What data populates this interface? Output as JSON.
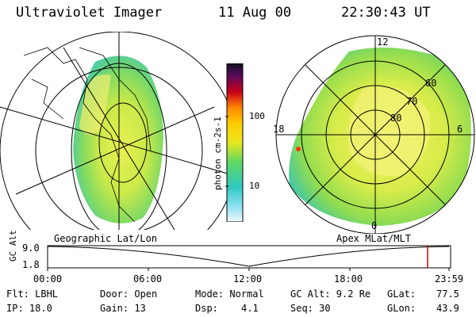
{
  "header": {
    "instrument": "Ultraviolet Imager",
    "date": "11 Aug 00",
    "time": "22:30:43 UT"
  },
  "colorbar": {
    "label": "photon cm-2s-1",
    "ticks": [
      "100",
      "10"
    ],
    "colors": [
      "#111122",
      "#2a0a3a",
      "#5a0a5a",
      "#8a0030",
      "#c8001a",
      "#ff3300",
      "#ff8800",
      "#ffcc00",
      "#e8e820",
      "#b0e830",
      "#60d860",
      "#30c8c0",
      "#8ae0f0",
      "#d8f0f8",
      "#f4f8fc"
    ]
  },
  "left_map": {
    "caption": "Geographic Lat/Lon"
  },
  "right_map": {
    "caption": "Apex MLat/MLT",
    "mlt_labels": [
      "12",
      "18",
      "6",
      "0"
    ],
    "lat_labels": [
      "60",
      "70",
      "80"
    ]
  },
  "timeline": {
    "axis_label": "GC Alt",
    "y_ticks": [
      "9.0",
      "1.8"
    ],
    "x_ticks": [
      "00:00",
      "06:00",
      "12:00",
      "18:00",
      "23:59"
    ],
    "marker_color": "#cc0000"
  },
  "footer": {
    "flt": "Flt: LBHL",
    "ip": "IP: 18.0",
    "door": "Door: Open",
    "gain": "Gain: 13",
    "mode": "Mode: Normal",
    "dsp_label": "Dsp:",
    "dsp_value": "4.1",
    "gc_alt": "GC Alt: 9.2 Re",
    "seq": "Seq: 30",
    "glat_label": "GLat:",
    "glat_value": "77.5",
    "glon_label": "GLon:",
    "glon_value": "43.9"
  }
}
